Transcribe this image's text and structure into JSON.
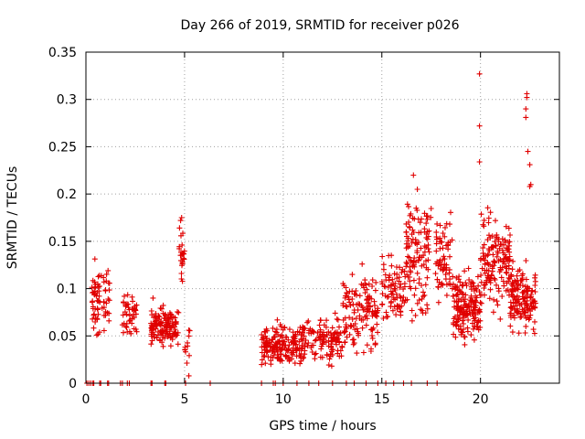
{
  "chart_data": {
    "type": "scatter",
    "title": "Day 266 of 2019, SRMTID for receiver p026",
    "xlabel": "GPS time / hours",
    "ylabel": "SRMTID / TECUs",
    "xlim": [
      0,
      24
    ],
    "ylim": [
      0,
      0.35
    ],
    "xticks": [
      0,
      5,
      10,
      15,
      20
    ],
    "xtick_labels": [
      "0",
      "5",
      "10",
      "15",
      "20"
    ],
    "yticks": [
      0,
      0.05,
      0.1,
      0.15,
      0.2,
      0.25,
      0.3,
      0.35
    ],
    "ytick_labels": [
      "0",
      "0.05",
      "0.1",
      "0.15",
      "0.2",
      "0.25",
      "0.3",
      "0.35"
    ],
    "grid": true,
    "marker": "+",
    "color": "#e00000",
    "clusters": [
      {
        "x": [
          0.3,
          1.2
        ],
        "y": [
          0.04,
          0.14
        ],
        "n": 70
      },
      {
        "x": [
          1.8,
          2.6
        ],
        "y": [
          0.04,
          0.11
        ],
        "n": 45
      },
      {
        "x": [
          3.3,
          4.7
        ],
        "y": [
          0.03,
          0.09
        ],
        "n": 140
      },
      {
        "x": [
          4.7,
          5.0
        ],
        "y": [
          0.1,
          0.18
        ],
        "n": 22
      },
      {
        "x": [
          4.9,
          5.3
        ],
        "y": [
          0.0,
          0.07
        ],
        "n": 12
      },
      {
        "x": [
          8.9,
          11.0
        ],
        "y": [
          0.01,
          0.07
        ],
        "n": 190
      },
      {
        "x": [
          11.0,
          13.0
        ],
        "y": [
          0.01,
          0.08
        ],
        "n": 120
      },
      {
        "x": [
          13.0,
          14.8
        ],
        "y": [
          0.02,
          0.13
        ],
        "n": 130
      },
      {
        "x": [
          15.0,
          16.2
        ],
        "y": [
          0.05,
          0.15
        ],
        "n": 80
      },
      {
        "x": [
          16.2,
          17.5
        ],
        "y": [
          0.05,
          0.22
        ],
        "n": 120
      },
      {
        "x": [
          17.7,
          18.6
        ],
        "y": [
          0.06,
          0.2
        ],
        "n": 70
      },
      {
        "x": [
          18.6,
          20.0
        ],
        "y": [
          0.03,
          0.13
        ],
        "n": 170
      },
      {
        "x": [
          20.0,
          21.5
        ],
        "y": [
          0.06,
          0.2
        ],
        "n": 150
      },
      {
        "x": [
          21.5,
          22.8
        ],
        "y": [
          0.04,
          0.14
        ],
        "n": 150
      }
    ],
    "isolated_points": [
      {
        "x": 19.95,
        "y": 0.327
      },
      {
        "x": 19.95,
        "y": 0.272
      },
      {
        "x": 19.95,
        "y": 0.234
      },
      {
        "x": 22.35,
        "y": 0.306
      },
      {
        "x": 22.35,
        "y": 0.302
      },
      {
        "x": 22.3,
        "y": 0.281
      },
      {
        "x": 22.3,
        "y": 0.29
      },
      {
        "x": 22.4,
        "y": 0.245
      },
      {
        "x": 22.5,
        "y": 0.231
      },
      {
        "x": 22.55,
        "y": 0.21
      },
      {
        "x": 22.5,
        "y": 0.208
      },
      {
        "x": 16.6,
        "y": 0.22
      },
      {
        "x": 16.8,
        "y": 0.205
      },
      {
        "x": 4.85,
        "y": 0.175
      },
      {
        "x": 4.8,
        "y": 0.172
      },
      {
        "x": 13.5,
        "y": 0.115
      },
      {
        "x": 14.0,
        "y": 0.126
      },
      {
        "x": 3.4,
        "y": 0.09
      }
    ],
    "zero_points": [
      0.05,
      0.15,
      0.25,
      0.35,
      0.4,
      0.7,
      0.75,
      1.1,
      1.15,
      1.75,
      1.85,
      2.1,
      2.2,
      3.3,
      3.35,
      4.0,
      4.05,
      5.05,
      6.3,
      8.9,
      9.5,
      9.6,
      10.0,
      10.7,
      11.3,
      11.8,
      12.5,
      13.2,
      13.6,
      14.2,
      14.8,
      15.2,
      15.6,
      16.1,
      16.5,
      17.3,
      17.8
    ]
  }
}
